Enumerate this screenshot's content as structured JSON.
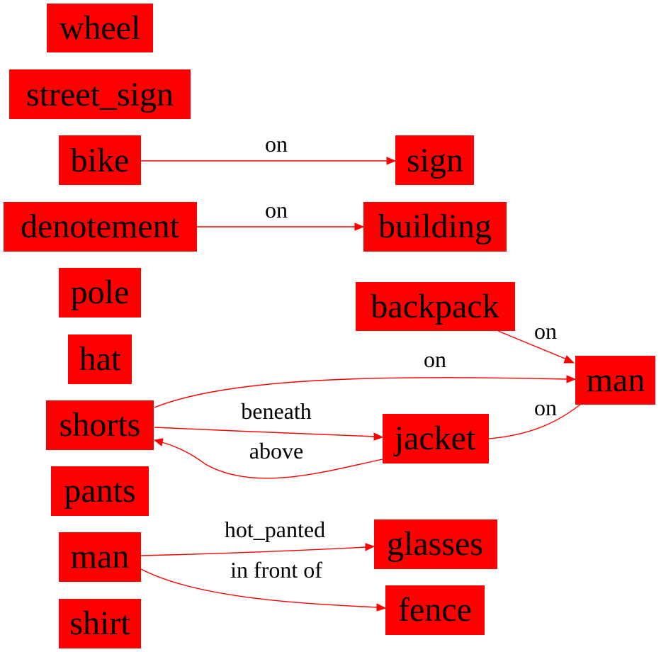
{
  "graph": {
    "colors": {
      "node_fill": "#ff0000",
      "edge": "#ff0000",
      "text": "#000000",
      "background": "#ffffff"
    },
    "nodes": {
      "wheel": "wheel",
      "street_sign": "street_sign",
      "bike": "bike",
      "sign": "sign",
      "denotement": "denotement",
      "building": "building",
      "pole": "pole",
      "backpack": "backpack",
      "hat": "hat",
      "man_right": "man",
      "shorts": "shorts",
      "jacket": "jacket",
      "pants": "pants",
      "man_left": "man",
      "glasses": "glasses",
      "shirt": "shirt",
      "fence": "fence"
    },
    "edges": {
      "bike_sign": "on",
      "denotement_building": "on",
      "backpack_man": "on",
      "shorts_man": "on",
      "shorts_jacket": "beneath",
      "jacket_man": "on",
      "jacket_shorts": "above",
      "man_glasses": "hot_panted",
      "man_fence": "in front of"
    }
  }
}
